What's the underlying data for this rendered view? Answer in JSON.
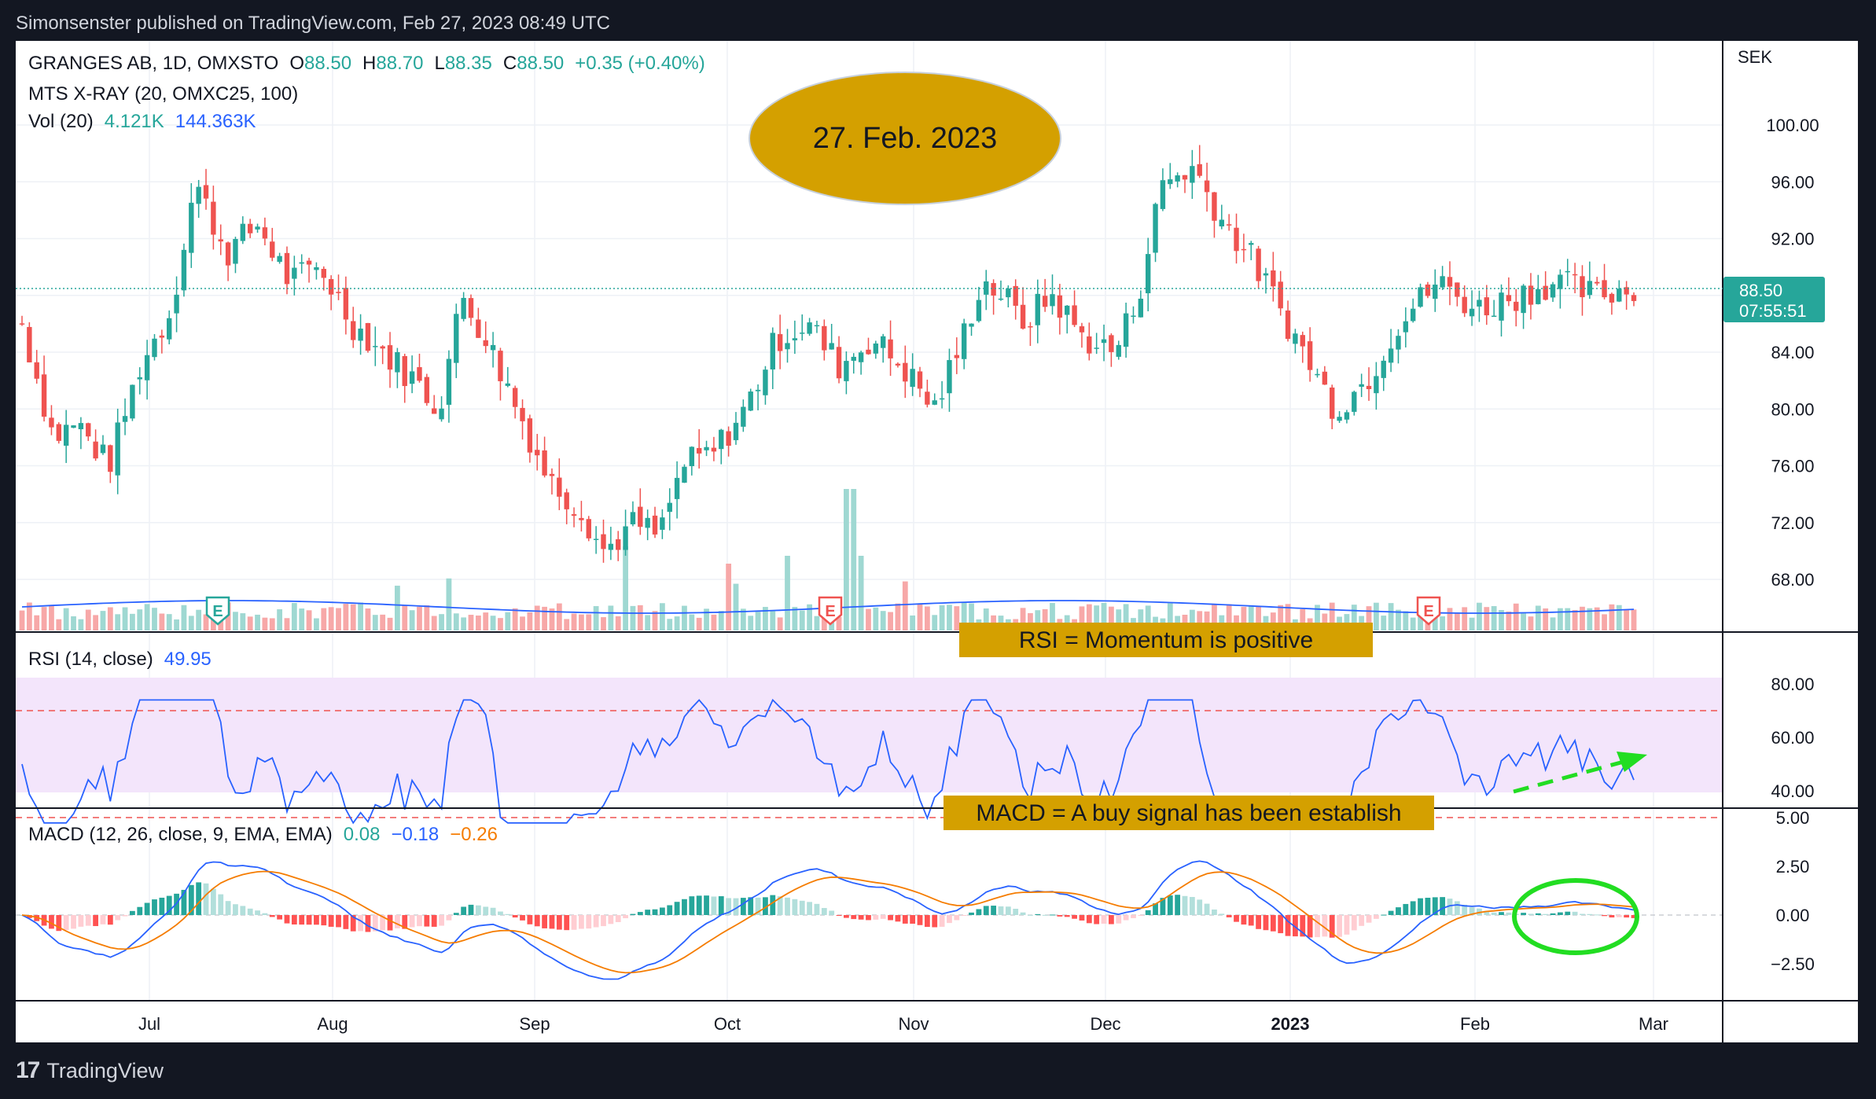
{
  "header": {
    "published": "Simonsenster published on TradingView.com, Feb 27, 2023 08:49 UTC"
  },
  "footer": {
    "brand": "TradingView",
    "logo_icon": "tradingview-logo-icon"
  },
  "legend": {
    "symbol_line": {
      "name": "GRANGES AB, 1D, OMXSTO",
      "o_label": "O",
      "o": "88.50",
      "h_label": "H",
      "h": "88.70",
      "l_label": "L",
      "l": "88.35",
      "c_label": "C",
      "c": "88.50",
      "change": "+0.35 (+0.40%)"
    },
    "indicator_line": "MTS X-RAY (20, OMXC25, 100)",
    "vol_line": {
      "label": "Vol (20)",
      "v1": "4.121K",
      "v2": "144.363K"
    },
    "rsi_line": {
      "label": "RSI (14, close)",
      "value": "49.95"
    },
    "macd_line": {
      "label": "MACD (12, 26, close, 9, EMA, EMA)",
      "v1": "0.08",
      "v2": "−0.18",
      "v3": "−0.26"
    }
  },
  "annotations": {
    "date_ellipse": "27. Feb. 2023",
    "rsi_box": "RSI = Momentum is positive",
    "macd_box": "MACD = A buy signal has been establish"
  },
  "price_scale": {
    "currency": "SEK",
    "last_price": "88.50",
    "countdown": "07:55:51"
  },
  "colors": {
    "up": "#26a69a",
    "down": "#ef5350",
    "macd": "#2962ff",
    "signal": "#f57c00",
    "rsi": "#2962ff",
    "annotation": "#d4a000"
  },
  "chart_data": [
    {
      "type": "candlestick",
      "title": "GRANGES AB, 1D, OMXSTO",
      "ylabel": "SEK",
      "ylim": [
        64.0,
        103.0
      ],
      "y_ticks": [
        "100.00",
        "96.00",
        "92.00",
        "88.00",
        "84.00",
        "80.00",
        "76.00",
        "72.00",
        "68.00"
      ],
      "x_ticks": [
        "Jul",
        "Aug",
        "Sep",
        "Oct",
        "Nov",
        "Dec",
        "2023",
        "Feb",
        "Mar"
      ],
      "earnings_markers": [
        {
          "label": "E",
          "type": "past",
          "x": "2022-07-14"
        },
        {
          "label": "E",
          "type": "negative",
          "x": "2022-10-21"
        },
        {
          "label": "E",
          "type": "negative",
          "x": "2023-01-25"
        }
      ],
      "last_value": 88.5
    },
    {
      "type": "bar",
      "title": "Vol (20)",
      "series_names": [
        "volume",
        "volume MA"
      ]
    },
    {
      "type": "line",
      "title": "RSI (14, close)",
      "y_ticks": [
        "80.00",
        "60.00",
        "40.00"
      ],
      "ylim": [
        28,
        82
      ],
      "bands": [
        30,
        70
      ],
      "last_value": 49.95
    },
    {
      "type": "line",
      "title": "MACD (12, 26, close, 9, EMA, EMA)",
      "y_ticks": [
        "5.00",
        "2.50",
        "0.00",
        "−2.50"
      ],
      "ylim": [
        -3.9,
        5.2
      ],
      "series": [
        {
          "name": "histogram",
          "last": 0.08
        },
        {
          "name": "MACD",
          "last": -0.18
        },
        {
          "name": "signal",
          "last": -0.26
        }
      ]
    }
  ]
}
